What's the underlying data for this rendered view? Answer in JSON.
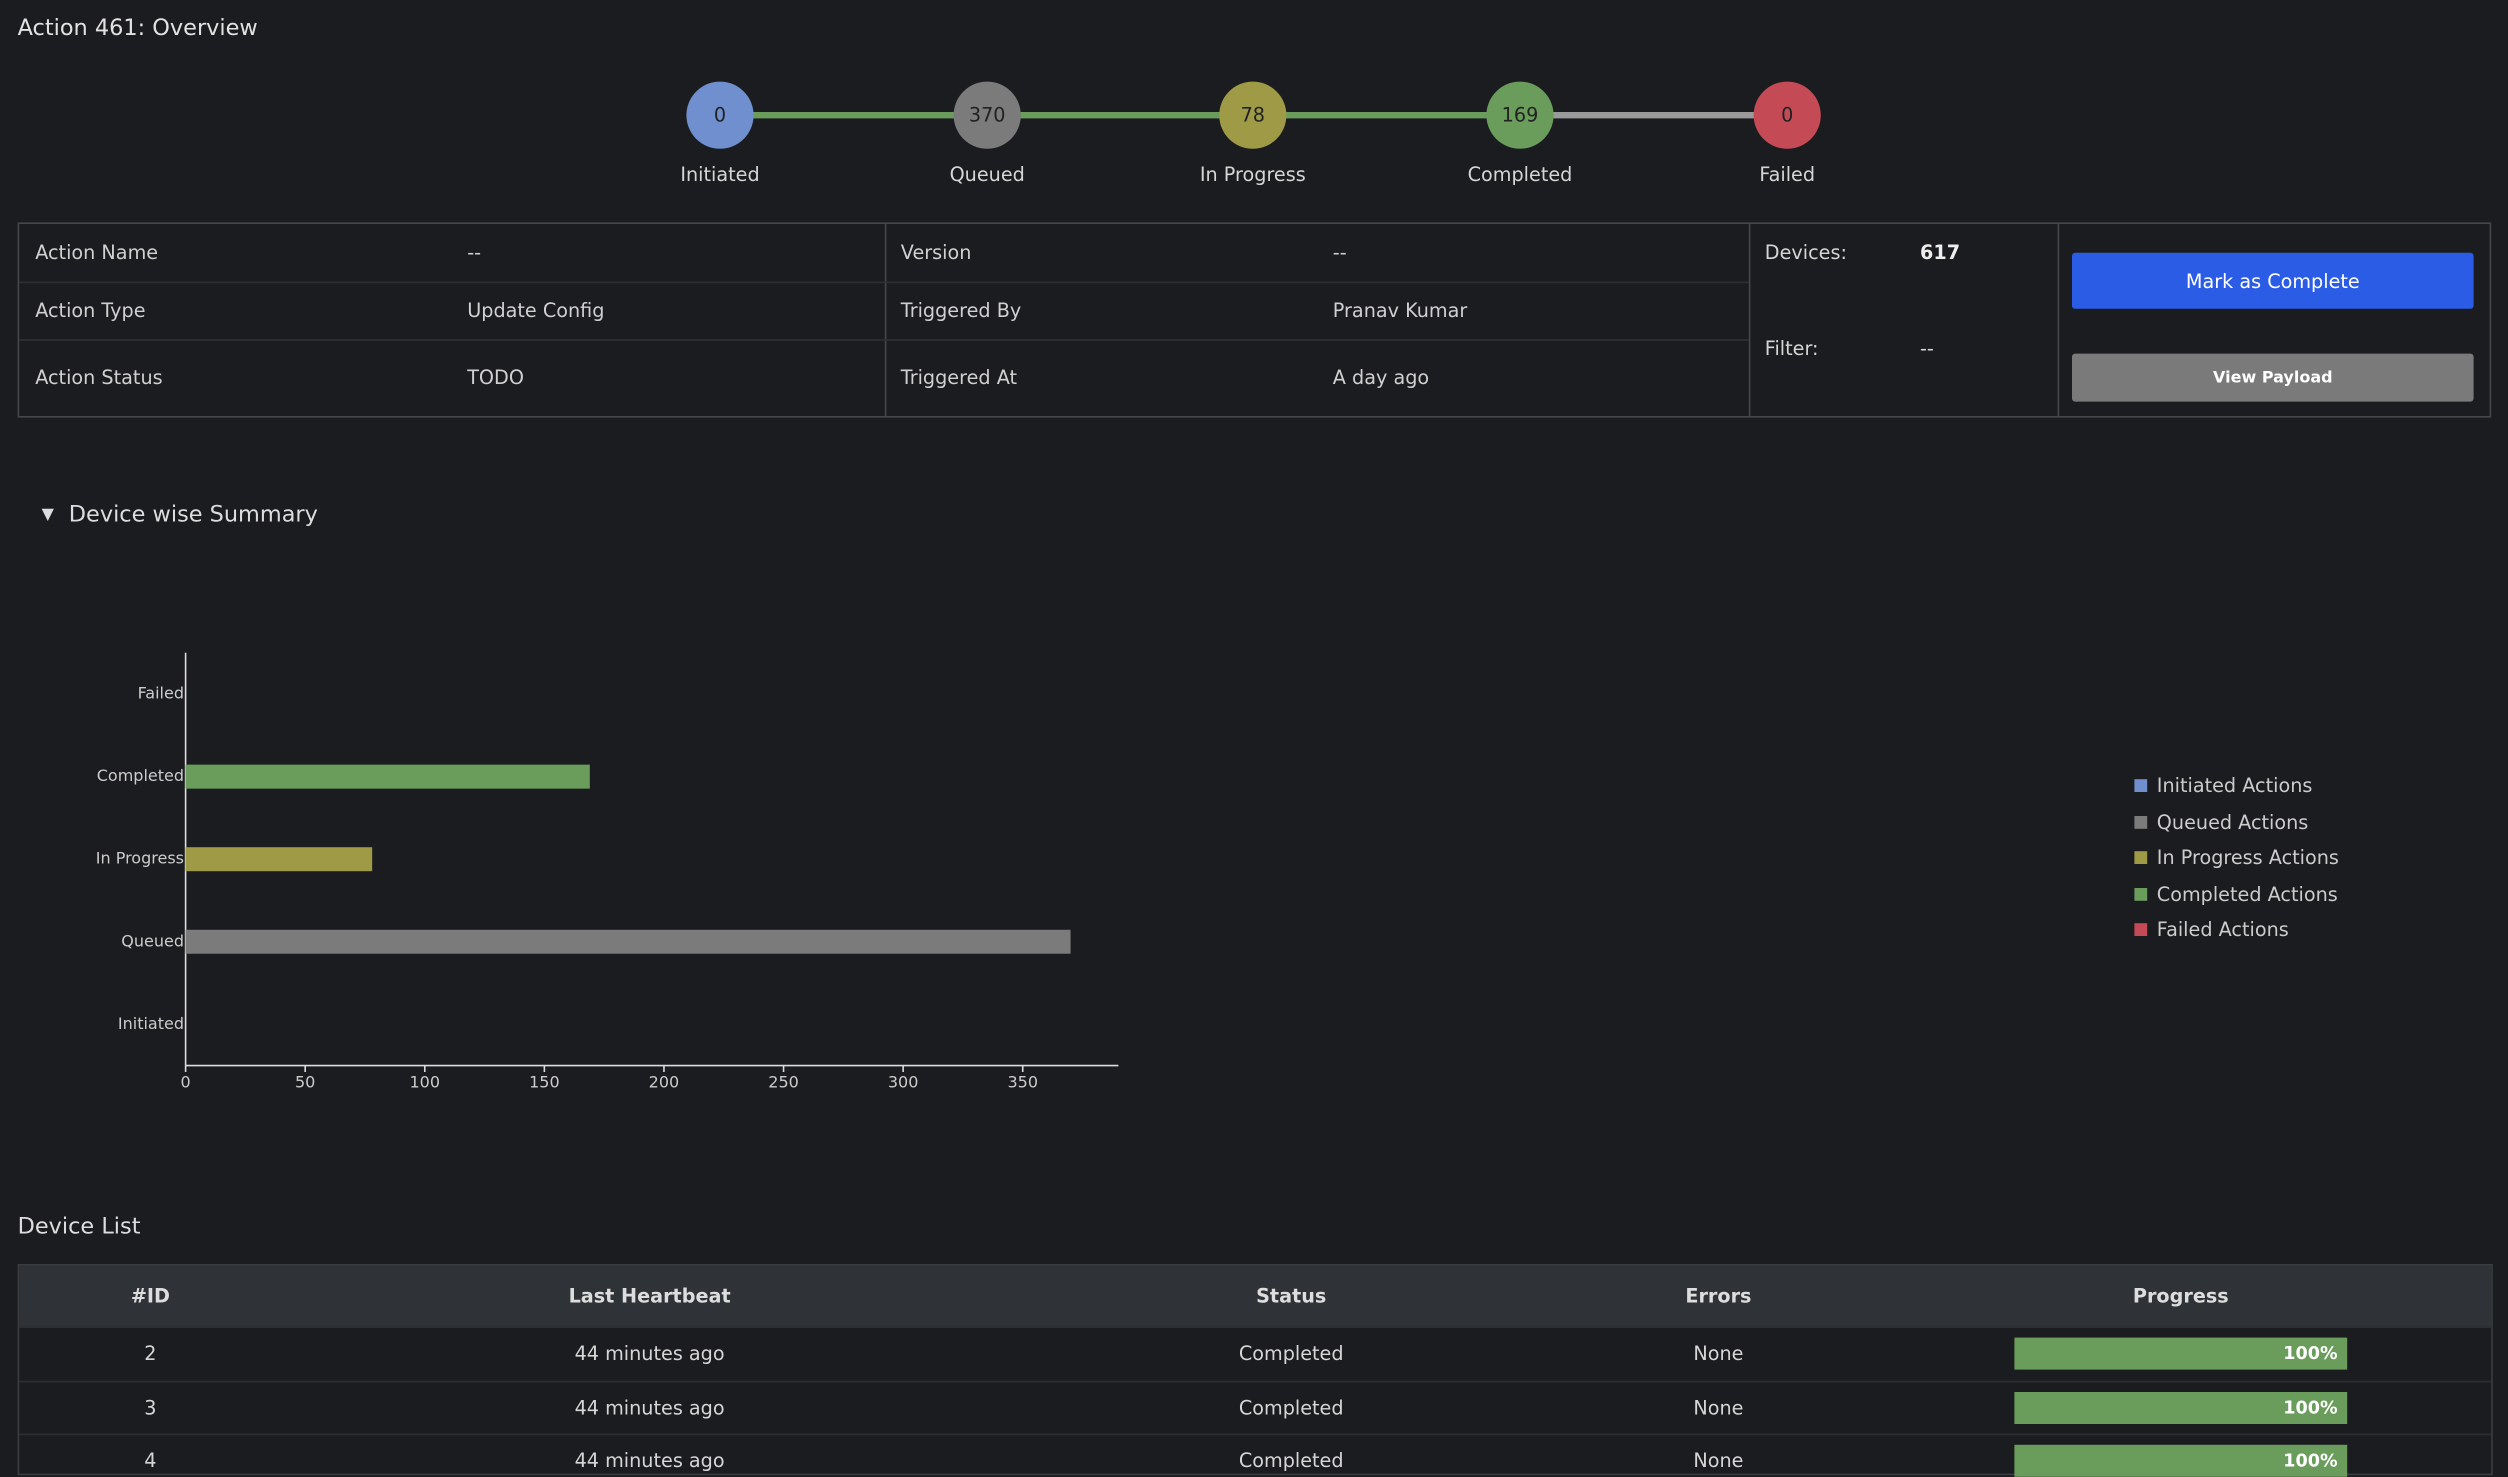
{
  "header": {
    "title": "Action 461: Overview"
  },
  "stages": [
    {
      "count": "0",
      "label": "Initiated",
      "color": "#6f8fce"
    },
    {
      "count": "370",
      "label": "Queued",
      "color": "#7b7b7b"
    },
    {
      "count": "78",
      "label": "In Progress",
      "color": "#9e9a45"
    },
    {
      "count": "169",
      "label": "Completed",
      "color": "#6a9c5c"
    },
    {
      "count": "0",
      "label": "Failed",
      "color": "#c44a55"
    }
  ],
  "info": {
    "rows": [
      [
        "Action Name",
        "--",
        "Version",
        "--"
      ],
      [
        "Action Type",
        "Update Config",
        "Triggered By",
        "Pranav Kumar"
      ],
      [
        "Action Status",
        "TODO",
        "Triggered At",
        "A day ago"
      ]
    ],
    "devices_label": "Devices:",
    "devices_value": "617",
    "filter_label": "Filter:",
    "filter_value": "--"
  },
  "buttons": {
    "complete": "Mark as Complete",
    "payload": "View Payload"
  },
  "summary": {
    "title": "Device wise Summary"
  },
  "chart_data": {
    "type": "bar",
    "orientation": "horizontal",
    "categories": [
      "Initiated",
      "Queued",
      "In Progress",
      "Completed",
      "Failed"
    ],
    "values": [
      0,
      370,
      78,
      169,
      0
    ],
    "colors": [
      "#6f8fce",
      "#7b7b7b",
      "#9e9a45",
      "#6a9c5c",
      "#c44a55"
    ],
    "xlim": [
      0,
      390
    ],
    "xticks": [
      0,
      50,
      100,
      150,
      200,
      250,
      300,
      350
    ],
    "legend": [
      {
        "name": "Initiated Actions",
        "color": "#6f8fce"
      },
      {
        "name": "Queued Actions",
        "color": "#7b7b7b"
      },
      {
        "name": "In Progress Actions",
        "color": "#9e9a45"
      },
      {
        "name": "Completed Actions",
        "color": "#6a9c5c"
      },
      {
        "name": "Failed Actions",
        "color": "#c44a55"
      }
    ]
  },
  "device_list": {
    "title": "Device List",
    "columns": [
      "#ID",
      "Last Heartbeat",
      "Status",
      "Errors",
      "Progress"
    ],
    "progress_range": [
      0,
      100
    ],
    "rows": [
      {
        "id": "2",
        "heartbeat": "44 minutes ago",
        "status": "Completed",
        "errors": "None",
        "progress": 100,
        "progress_label": "100%"
      },
      {
        "id": "3",
        "heartbeat": "44 minutes ago",
        "status": "Completed",
        "errors": "None",
        "progress": 100,
        "progress_label": "100%"
      },
      {
        "id": "4",
        "heartbeat": "44 minutes ago",
        "status": "Completed",
        "errors": "None",
        "progress": 100,
        "progress_label": "100%"
      }
    ]
  }
}
